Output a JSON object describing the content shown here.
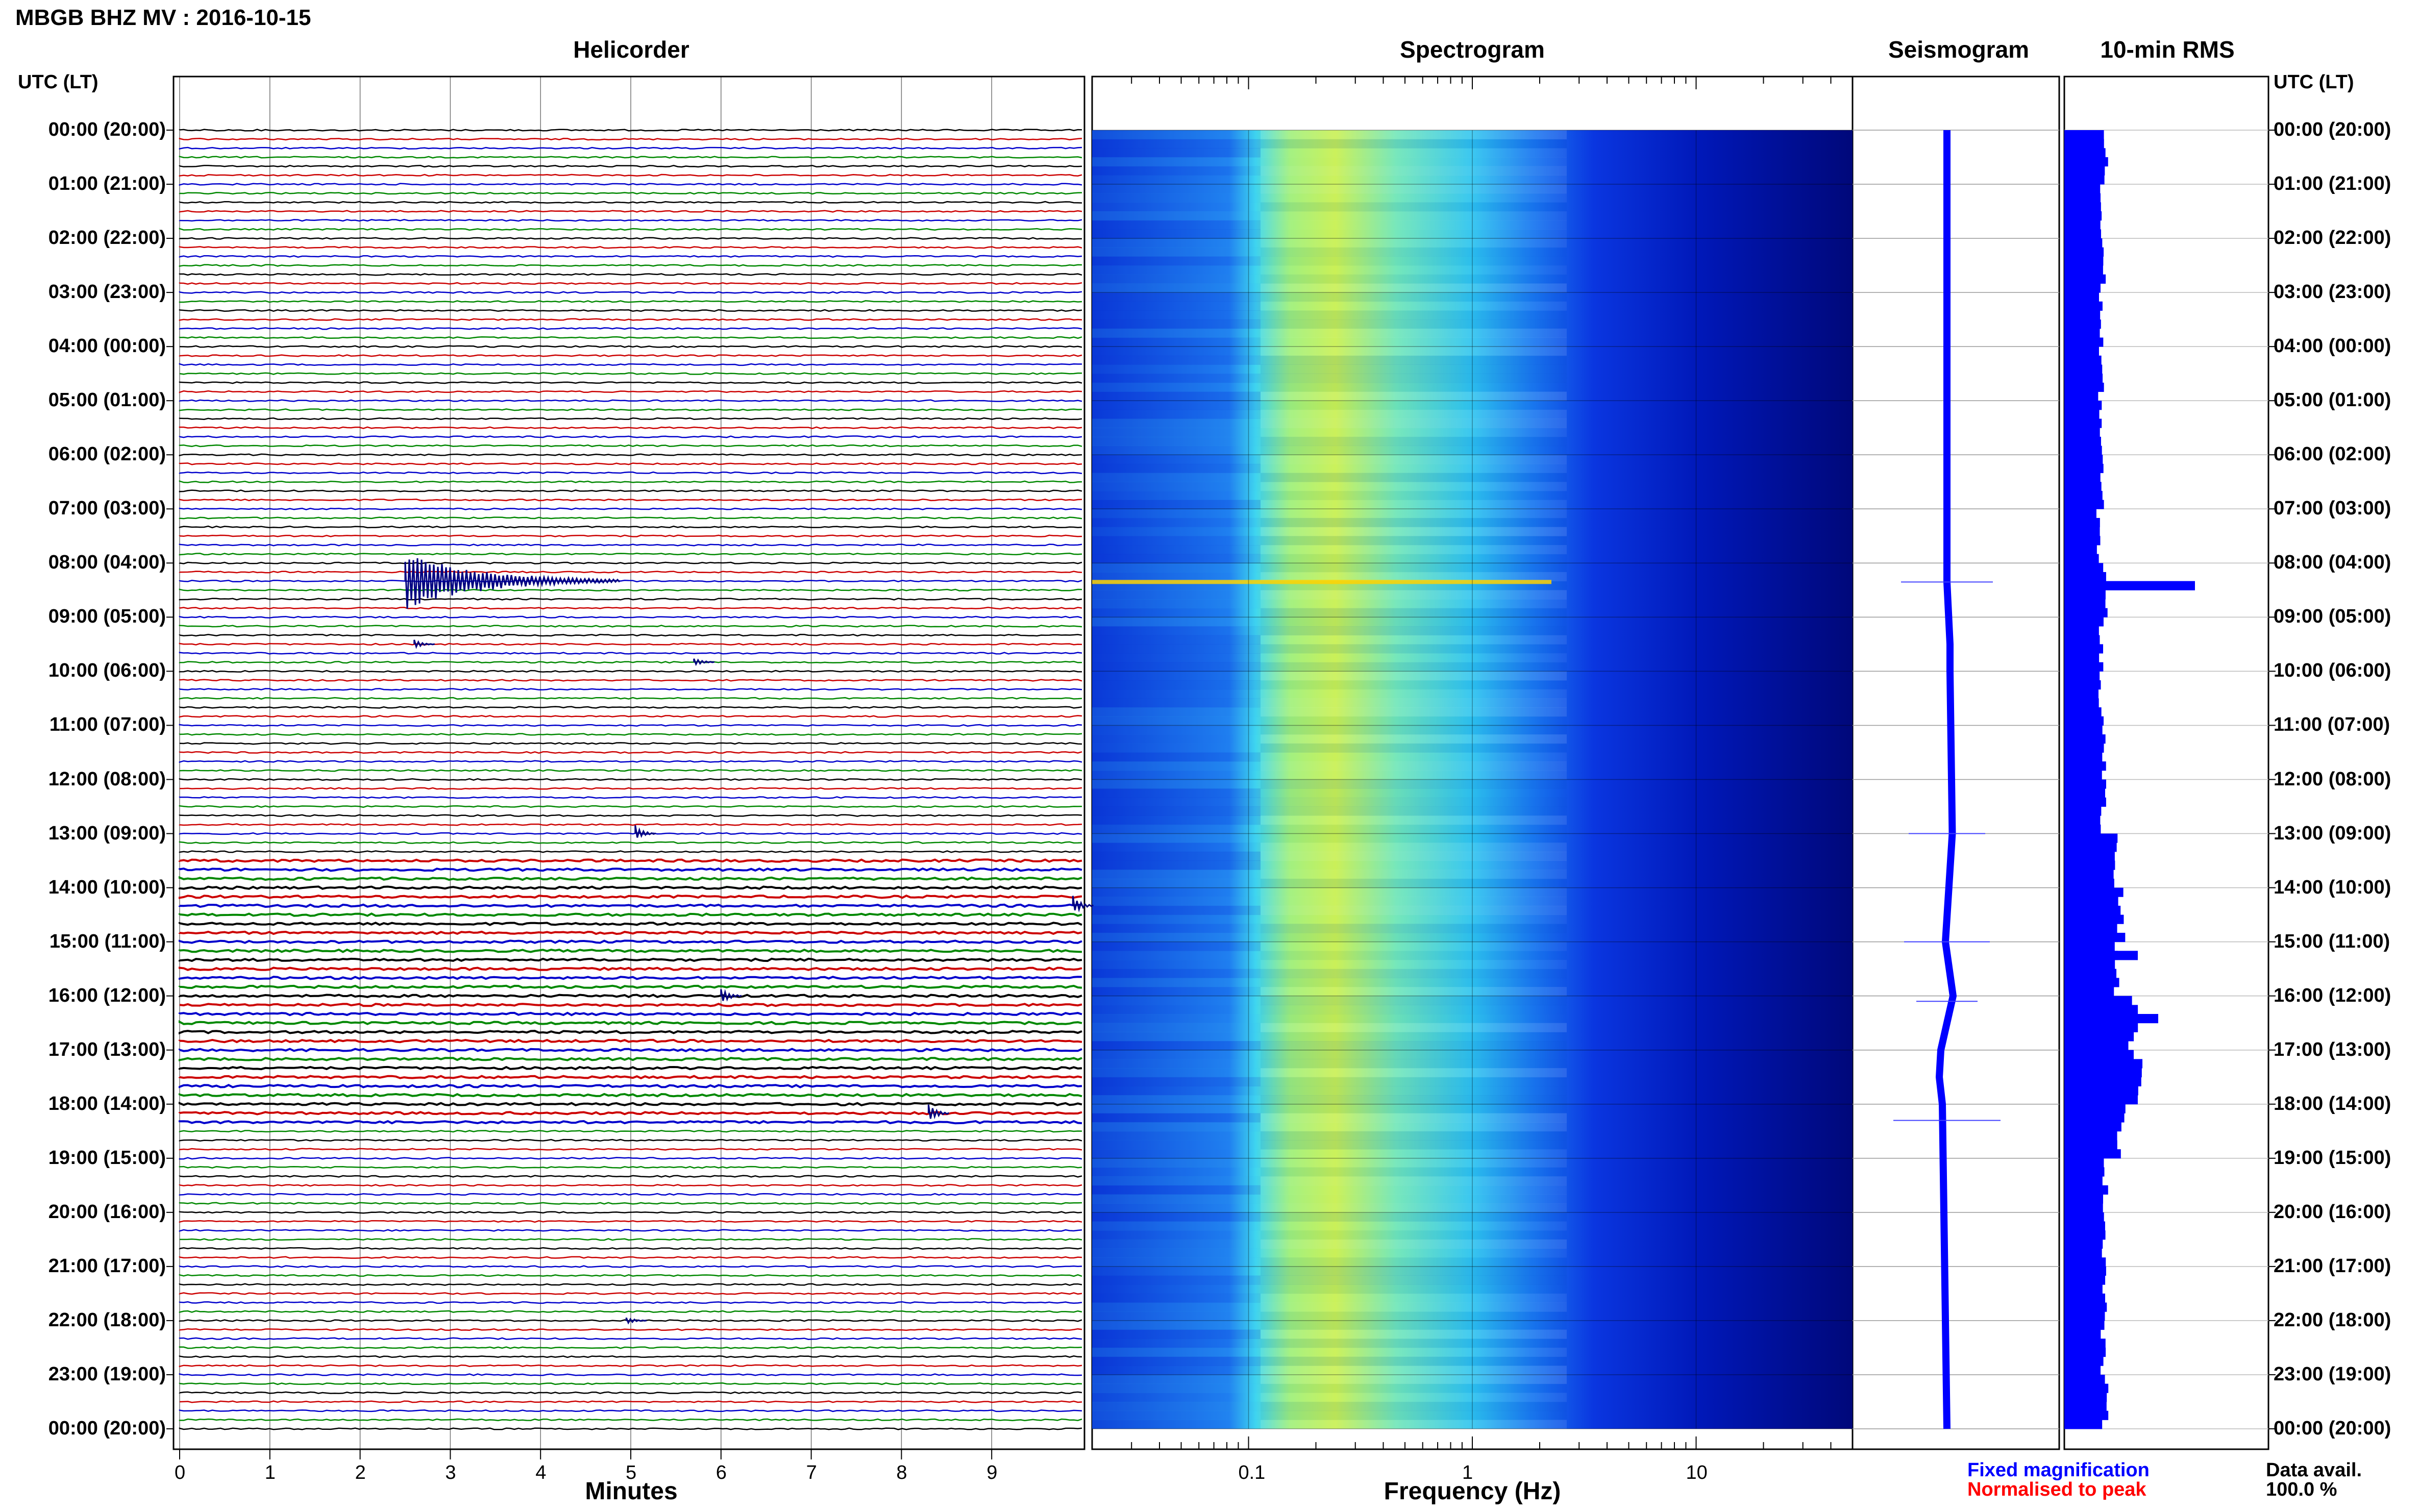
{
  "page": {
    "title": "MBGB BHZ MV : 2016-10-15",
    "utc_header": "UTC (LT)"
  },
  "panels": {
    "helicorder": "Helicorder",
    "spectrogram": "Spectrogram",
    "seismogram": "Seismogram",
    "rms": "10-min RMS"
  },
  "axes": {
    "minutes_label": "Minutes",
    "frequency_label": "Frequency (Hz)"
  },
  "legend": {
    "fixed": "Fixed magnification",
    "normalised": "Normalised to peak",
    "fixed_color": "#0000ff",
    "normalised_color": "#ff0000"
  },
  "availability": {
    "label": "Data avail.",
    "value": "100.0 %"
  },
  "colors": {
    "trace_cycle": [
      "#000000",
      "#cc0000",
      "#0000cc",
      "#008800"
    ],
    "rms_bar": "#0000ff",
    "spectro_low": "#00007f",
    "spectro_high": "#e6ff40"
  },
  "chart_data": [
    {
      "type": "line",
      "title": "Helicorder",
      "xlabel": "Minutes",
      "xlim": [
        0,
        10
      ],
      "x_ticks": [
        0,
        1,
        2,
        3,
        4,
        5,
        6,
        7,
        8,
        9
      ],
      "rows_per_hour": 6,
      "hour_labels": [
        "00:00 (20:00)",
        "01:00 (21:00)",
        "02:00 (22:00)",
        "03:00 (23:00)",
        "04:00 (00:00)",
        "05:00 (01:00)",
        "06:00 (02:00)",
        "07:00 (03:00)",
        "08:00 (04:00)",
        "09:00 (05:00)",
        "10:00 (06:00)",
        "11:00 (07:00)",
        "12:00 (08:00)",
        "13:00 (09:00)",
        "14:00 (10:00)",
        "15:00 (11:00)",
        "16:00 (12:00)",
        "17:00 (13:00)",
        "18:00 (14:00)",
        "19:00 (15:00)",
        "20:00 (16:00)",
        "21:00 (17:00)",
        "22:00 (18:00)",
        "23:00 (19:00)",
        "00:00 (20:00)"
      ],
      "events": [
        {
          "hour": 8.33,
          "minute": 2.5,
          "amplitude": 3.2
        },
        {
          "hour": 9.5,
          "minute": 2.6,
          "amplitude": 0.5
        },
        {
          "hour": 9.83,
          "minute": 5.7,
          "amplitude": 0.5
        },
        {
          "hour": 13.0,
          "minute": 5.05,
          "amplitude": 0.9
        },
        {
          "hour": 14.33,
          "minute": 9.9,
          "amplitude": 1.1
        },
        {
          "hour": 16.0,
          "minute": 6.0,
          "amplitude": 1.0
        },
        {
          "hour": 18.17,
          "minute": 8.3,
          "amplitude": 1.1
        },
        {
          "hour": 22.0,
          "minute": 4.95,
          "amplitude": 0.4
        }
      ]
    },
    {
      "type": "heatmap",
      "title": "Spectrogram",
      "xlabel": "Frequency (Hz)",
      "x_scale": "log",
      "xlim": [
        0.02,
        50
      ],
      "x_tick_labels": [
        "0.1",
        "1",
        "10"
      ],
      "x_ticks": [
        0.1,
        1,
        10
      ],
      "peak_band_hz": [
        0.15,
        0.4
      ]
    },
    {
      "type": "line",
      "title": "Seismogram",
      "hours": [
        0,
        8.35,
        9.5,
        10.0,
        13.0,
        15.0,
        16.0,
        17.0,
        17.5,
        18.0,
        24
      ],
      "trace_offset": [
        0,
        0,
        0.2,
        0.2,
        0.35,
        -0.1,
        0.4,
        -0.4,
        -0.5,
        -0.3,
        0
      ],
      "spikes": [
        {
          "hour": 8.35,
          "width": 3.0
        },
        {
          "hour": 13.0,
          "width": 2.5
        },
        {
          "hour": 15.0,
          "width": 2.8
        },
        {
          "hour": 16.1,
          "width": 2.0
        },
        {
          "hour": 18.3,
          "width": 3.5
        }
      ]
    },
    {
      "type": "bar",
      "title": "10-min RMS",
      "orientation": "horizontal",
      "hourly_rms": [
        1.0,
        0.9,
        0.95,
        0.9,
        0.9,
        0.9,
        0.9,
        0.85,
        1.0,
        0.9,
        0.9,
        1.0,
        0.95,
        1.3,
        1.4,
        1.3,
        1.7,
        1.8,
        1.4,
        1.0,
        1.0,
        1.0,
        0.95,
        1.0
      ],
      "peaks": [
        {
          "hour": 8.33,
          "value": 3.2
        },
        {
          "hour": 15.17,
          "value": 1.8
        },
        {
          "hour": 16.33,
          "value": 2.3
        },
        {
          "hour": 16.67,
          "value": 1.2
        },
        {
          "hour": 17.0,
          "value": 1.7
        },
        {
          "hour": 17.5,
          "value": 1.6
        }
      ]
    }
  ]
}
